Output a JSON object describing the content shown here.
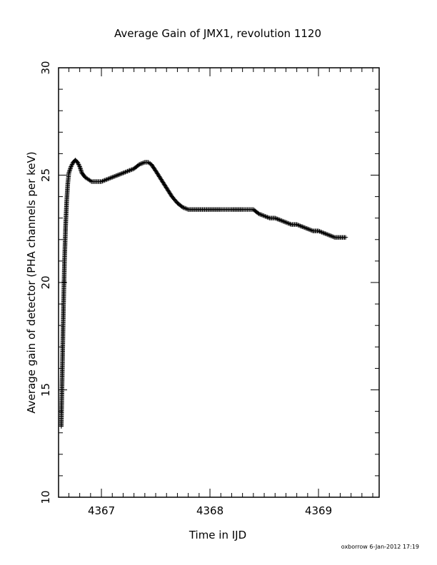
{
  "chart_data": {
    "type": "scatter",
    "title": "Average Gain of JMX1, revolution 1120",
    "xlabel": "Time in IJD",
    "ylabel": "Average gain of detector (PHA channels per keV)",
    "xlim": [
      4366.6,
      4369.5
    ],
    "ylim": [
      10,
      30
    ],
    "xticks": [
      4367,
      4368,
      4369
    ],
    "xtick_labels": [
      "4367",
      "4368",
      "4369"
    ],
    "yticks": [
      10,
      15,
      20,
      25,
      30
    ],
    "ytick_labels": [
      "10",
      "15",
      "20",
      "25",
      "30"
    ],
    "grid": false,
    "marker": "+",
    "series": [
      {
        "x": [
          4366.63,
          4366.64,
          4366.65,
          4366.66,
          4366.67,
          4366.68,
          4366.69,
          4366.7,
          4366.72,
          4366.74,
          4366.76,
          4366.78,
          4366.8,
          4366.82,
          4366.85,
          4366.88,
          4366.91,
          4366.94,
          4366.97,
          4367.0,
          4367.05,
          4367.1,
          4367.15,
          4367.2,
          4367.25,
          4367.3,
          4367.35,
          4367.4,
          4367.43,
          4367.46,
          4367.5,
          4367.55,
          4367.6,
          4367.65,
          4367.7,
          4367.75,
          4367.8,
          4367.85,
          4367.9,
          4368.0,
          4368.1,
          4368.2,
          4368.3,
          4368.4,
          4368.45,
          4368.5,
          4368.55,
          4368.6,
          4368.65,
          4368.7,
          4368.75,
          4368.8,
          4368.85,
          4368.9,
          4368.95,
          4369.0,
          4369.05,
          4369.1,
          4369.15,
          4369.2,
          4369.25
        ],
        "y": [
          13.3,
          16.0,
          18.8,
          21.0,
          22.6,
          23.8,
          24.6,
          25.1,
          25.4,
          25.6,
          25.7,
          25.6,
          25.4,
          25.1,
          24.9,
          24.8,
          24.7,
          24.7,
          24.7,
          24.7,
          24.8,
          24.9,
          25.0,
          25.1,
          25.2,
          25.3,
          25.5,
          25.6,
          25.6,
          25.5,
          25.2,
          24.8,
          24.4,
          24.0,
          23.7,
          23.5,
          23.4,
          23.4,
          23.4,
          23.4,
          23.4,
          23.4,
          23.4,
          23.4,
          23.2,
          23.1,
          23.0,
          23.0,
          22.9,
          22.8,
          22.7,
          22.7,
          22.6,
          22.5,
          22.4,
          22.4,
          22.3,
          22.2,
          22.1,
          22.1,
          22.1
        ]
      }
    ]
  },
  "footer": {
    "stamp": "oxborrow  6-Jan-2012 17:19"
  }
}
